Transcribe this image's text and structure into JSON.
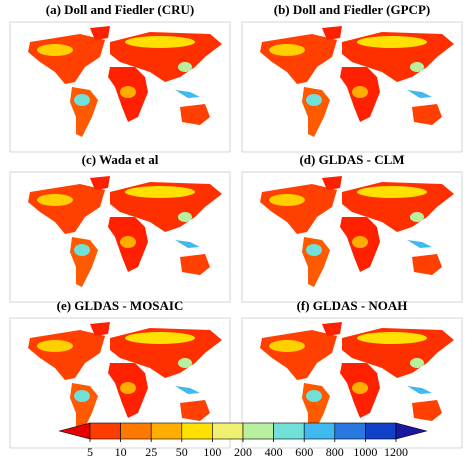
{
  "panels": [
    {
      "title": "(a) Doll and Fiedler (CRU)"
    },
    {
      "title": "(b) Doll and Fiedler (GPCP)"
    },
    {
      "title": "(c) Wada et al"
    },
    {
      "title": "(d) GLDAS - CLM"
    },
    {
      "title": "(e) GLDAS - MOSAIC"
    },
    {
      "title": "(f) GLDAS - NOAH"
    }
  ],
  "colorbar": {
    "ticks": [
      5,
      10,
      25,
      50,
      100,
      200,
      400,
      600,
      800,
      1000,
      1200
    ],
    "colors": [
      "#e80000",
      "#ff3c00",
      "#ff7800",
      "#ffae00",
      "#ffe000",
      "#f0f070",
      "#b8f0a0",
      "#70e0d8",
      "#40b8f0",
      "#2878e0",
      "#1040c8",
      "#1818a0"
    ]
  }
}
